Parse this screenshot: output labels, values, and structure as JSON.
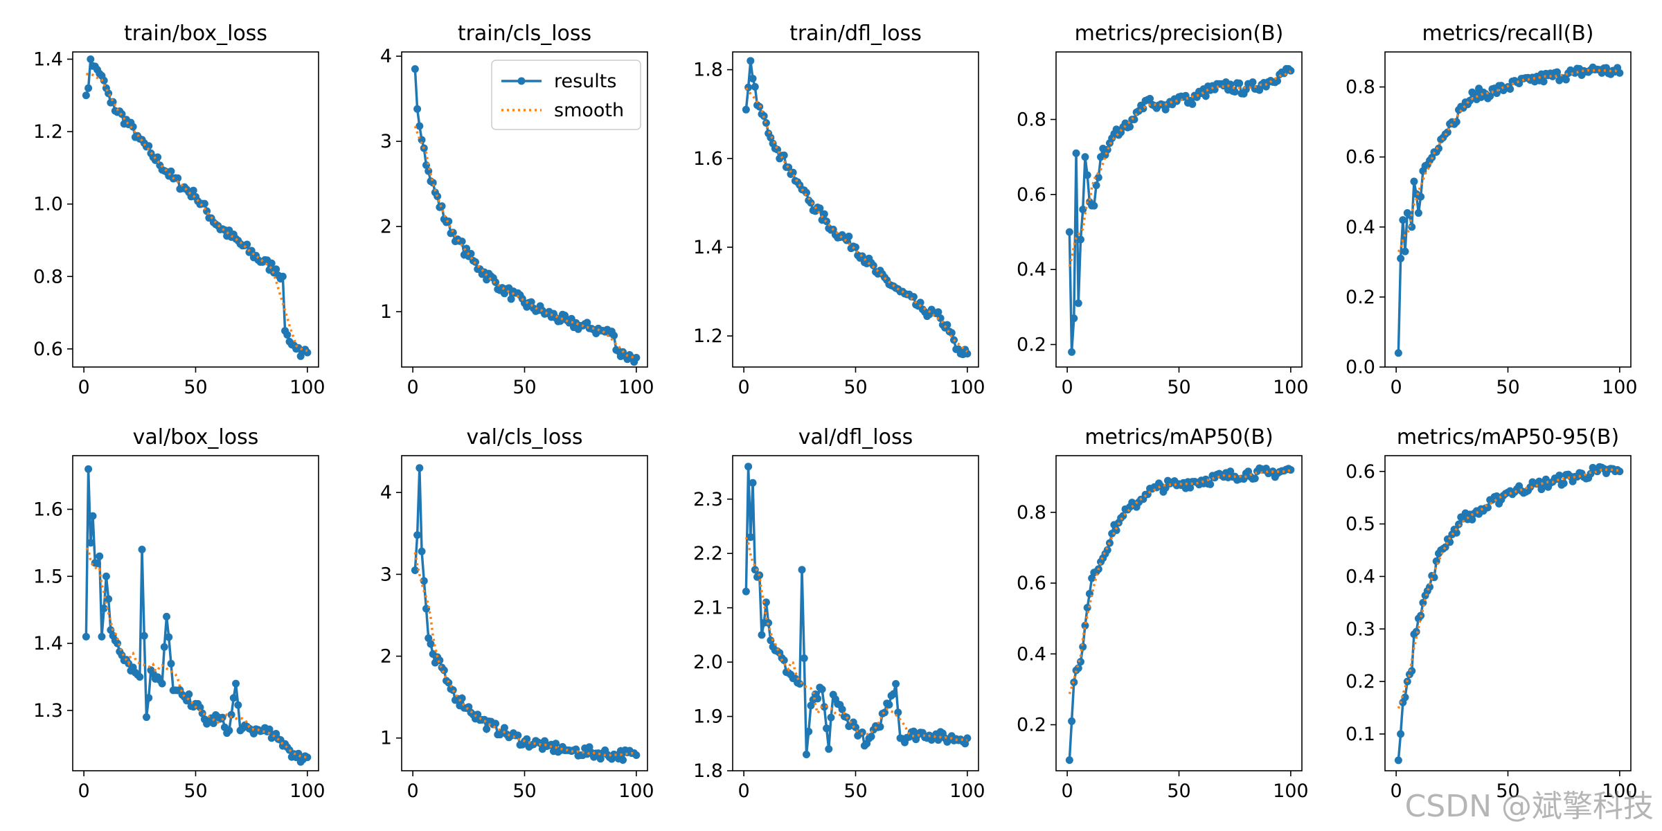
{
  "watermark": "CSDN @斌擎科技",
  "legend": {
    "results": "results",
    "smooth": "smooth"
  },
  "colors": {
    "results": "#1f77b4",
    "smooth": "#ff7f0e",
    "axis": "#000000"
  },
  "chart_data": [
    {
      "type": "line",
      "title": "train/box_loss",
      "xlim": [
        0,
        100
      ],
      "ylim": [
        0.55,
        1.42
      ],
      "xticks": [
        0,
        50,
        100
      ],
      "yticks": [
        0.6,
        0.8,
        1.0,
        1.2,
        1.4
      ],
      "ytick_labels": [
        "0.6",
        "0.8",
        "1.0",
        "1.2",
        "1.4"
      ],
      "anchors": [
        [
          1,
          1.3
        ],
        [
          2,
          1.32
        ],
        [
          3,
          1.4
        ],
        [
          5,
          1.38
        ],
        [
          7,
          1.36
        ],
        [
          10,
          1.32
        ],
        [
          12,
          1.28
        ],
        [
          20,
          1.22
        ],
        [
          25,
          1.18
        ],
        [
          30,
          1.14
        ],
        [
          40,
          1.07
        ],
        [
          50,
          1.02
        ],
        [
          60,
          0.94
        ],
        [
          70,
          0.89
        ],
        [
          80,
          0.84
        ],
        [
          86,
          0.82
        ],
        [
          89,
          0.8
        ],
        [
          90,
          0.65
        ],
        [
          92,
          0.62
        ],
        [
          95,
          0.6
        ],
        [
          97,
          0.58
        ],
        [
          100,
          0.59
        ]
      ],
      "legend": false
    },
    {
      "type": "line",
      "title": "train/cls_loss",
      "xlim": [
        0,
        100
      ],
      "ylim": [
        0.35,
        4.05
      ],
      "xticks": [
        0,
        50,
        100
      ],
      "yticks": [
        1,
        2,
        3,
        4
      ],
      "ytick_labels": [
        "1",
        "2",
        "3",
        "4"
      ],
      "anchors": [
        [
          1,
          3.85
        ],
        [
          2,
          3.38
        ],
        [
          3,
          3.18
        ],
        [
          5,
          2.92
        ],
        [
          7,
          2.65
        ],
        [
          10,
          2.4
        ],
        [
          15,
          2.05
        ],
        [
          20,
          1.85
        ],
        [
          25,
          1.65
        ],
        [
          30,
          1.5
        ],
        [
          40,
          1.28
        ],
        [
          50,
          1.1
        ],
        [
          60,
          0.98
        ],
        [
          70,
          0.87
        ],
        [
          80,
          0.8
        ],
        [
          88,
          0.75
        ],
        [
          90,
          0.72
        ],
        [
          91,
          0.55
        ],
        [
          95,
          0.48
        ],
        [
          100,
          0.46
        ]
      ],
      "legend": true
    },
    {
      "type": "line",
      "title": "train/dfl_loss",
      "xlim": [
        0,
        100
      ],
      "ylim": [
        1.13,
        1.84
      ],
      "xticks": [
        0,
        50,
        100
      ],
      "yticks": [
        1.2,
        1.4,
        1.6,
        1.8
      ],
      "ytick_labels": [
        "1.2",
        "1.4",
        "1.6",
        "1.8"
      ],
      "anchors": [
        [
          1,
          1.71
        ],
        [
          2,
          1.76
        ],
        [
          3,
          1.82
        ],
        [
          4,
          1.78
        ],
        [
          6,
          1.72
        ],
        [
          8,
          1.7
        ],
        [
          10,
          1.68
        ],
        [
          15,
          1.62
        ],
        [
          20,
          1.58
        ],
        [
          25,
          1.54
        ],
        [
          30,
          1.5
        ],
        [
          40,
          1.44
        ],
        [
          50,
          1.4
        ],
        [
          60,
          1.34
        ],
        [
          70,
          1.3
        ],
        [
          80,
          1.26
        ],
        [
          88,
          1.24
        ],
        [
          92,
          1.21
        ],
        [
          95,
          1.17
        ],
        [
          97,
          1.16
        ],
        [
          100,
          1.16
        ]
      ],
      "legend": false
    },
    {
      "type": "line",
      "title": "metrics/precision(B)",
      "xlim": [
        0,
        100
      ],
      "ylim": [
        0.14,
        0.98
      ],
      "xticks": [
        0,
        50,
        100
      ],
      "yticks": [
        0.2,
        0.4,
        0.6,
        0.8
      ],
      "ytick_labels": [
        "0.2",
        "0.4",
        "0.6",
        "0.8"
      ],
      "anchors": [
        [
          1,
          0.5
        ],
        [
          2,
          0.18
        ],
        [
          3,
          0.27
        ],
        [
          4,
          0.71
        ],
        [
          5,
          0.31
        ],
        [
          6,
          0.48
        ],
        [
          7,
          0.56
        ],
        [
          8,
          0.7
        ],
        [
          10,
          0.58
        ],
        [
          12,
          0.57
        ],
        [
          15,
          0.7
        ],
        [
          20,
          0.75
        ],
        [
          25,
          0.78
        ],
        [
          30,
          0.8
        ],
        [
          35,
          0.85
        ],
        [
          40,
          0.83
        ],
        [
          45,
          0.84
        ],
        [
          50,
          0.86
        ],
        [
          55,
          0.85
        ],
        [
          60,
          0.87
        ],
        [
          70,
          0.89
        ],
        [
          80,
          0.88
        ],
        [
          90,
          0.9
        ],
        [
          95,
          0.92
        ],
        [
          100,
          0.93
        ]
      ],
      "legend": false
    },
    {
      "type": "line",
      "title": "metrics/recall(B)",
      "xlim": [
        0,
        100
      ],
      "ylim": [
        0,
        0.9
      ],
      "xticks": [
        0,
        50,
        100
      ],
      "yticks": [
        0.0,
        0.2,
        0.4,
        0.6,
        0.8
      ],
      "ytick_labels": [
        "0.0",
        "0.2",
        "0.4",
        "0.6",
        "0.8"
      ],
      "anchors": [
        [
          1,
          0.04
        ],
        [
          2,
          0.31
        ],
        [
          3,
          0.42
        ],
        [
          4,
          0.33
        ],
        [
          5,
          0.44
        ],
        [
          7,
          0.4
        ],
        [
          8,
          0.53
        ],
        [
          10,
          0.44
        ],
        [
          12,
          0.56
        ],
        [
          15,
          0.59
        ],
        [
          20,
          0.65
        ],
        [
          25,
          0.7
        ],
        [
          30,
          0.74
        ],
        [
          35,
          0.78
        ],
        [
          40,
          0.78
        ],
        [
          50,
          0.8
        ],
        [
          60,
          0.82
        ],
        [
          70,
          0.83
        ],
        [
          80,
          0.84
        ],
        [
          90,
          0.85
        ],
        [
          100,
          0.84
        ]
      ],
      "legend": false
    },
    {
      "type": "line",
      "title": "val/box_loss",
      "xlim": [
        0,
        100
      ],
      "ylim": [
        1.21,
        1.68
      ],
      "xticks": [
        0,
        50,
        100
      ],
      "yticks": [
        1.3,
        1.4,
        1.5,
        1.6
      ],
      "ytick_labels": [
        "1.3",
        "1.4",
        "1.5",
        "1.6"
      ],
      "anchors": [
        [
          1,
          1.41
        ],
        [
          2,
          1.66
        ],
        [
          3,
          1.55
        ],
        [
          4,
          1.59
        ],
        [
          5,
          1.52
        ],
        [
          7,
          1.53
        ],
        [
          8,
          1.41
        ],
        [
          10,
          1.5
        ],
        [
          12,
          1.42
        ],
        [
          15,
          1.4
        ],
        [
          20,
          1.37
        ],
        [
          25,
          1.35
        ],
        [
          26,
          1.54
        ],
        [
          28,
          1.29
        ],
        [
          30,
          1.36
        ],
        [
          35,
          1.34
        ],
        [
          37,
          1.44
        ],
        [
          40,
          1.33
        ],
        [
          45,
          1.32
        ],
        [
          50,
          1.31
        ],
        [
          55,
          1.28
        ],
        [
          60,
          1.29
        ],
        [
          65,
          1.27
        ],
        [
          68,
          1.34
        ],
        [
          70,
          1.27
        ],
        [
          80,
          1.27
        ],
        [
          90,
          1.25
        ],
        [
          95,
          1.23
        ],
        [
          100,
          1.23
        ]
      ],
      "legend": false
    },
    {
      "type": "line",
      "title": "val/cls_loss",
      "xlim": [
        0,
        100
      ],
      "ylim": [
        0.6,
        4.45
      ],
      "xticks": [
        0,
        50,
        100
      ],
      "yticks": [
        1,
        2,
        3,
        4
      ],
      "ytick_labels": [
        "1",
        "2",
        "3",
        "4"
      ],
      "anchors": [
        [
          1,
          3.05
        ],
        [
          2,
          3.48
        ],
        [
          3,
          4.3
        ],
        [
          4,
          3.28
        ],
        [
          5,
          2.92
        ],
        [
          6,
          2.58
        ],
        [
          7,
          2.22
        ],
        [
          8,
          2.15
        ],
        [
          10,
          1.92
        ],
        [
          12,
          1.95
        ],
        [
          15,
          1.7
        ],
        [
          20,
          1.48
        ],
        [
          25,
          1.38
        ],
        [
          30,
          1.22
        ],
        [
          40,
          1.07
        ],
        [
          50,
          0.96
        ],
        [
          60,
          0.9
        ],
        [
          70,
          0.85
        ],
        [
          80,
          0.82
        ],
        [
          90,
          0.8
        ],
        [
          100,
          0.79
        ]
      ],
      "legend": false
    },
    {
      "type": "line",
      "title": "val/dfl_loss",
      "xlim": [
        0,
        100
      ],
      "ylim": [
        1.8,
        2.38
      ],
      "xticks": [
        0,
        50,
        100
      ],
      "yticks": [
        1.8,
        1.9,
        2.0,
        2.1,
        2.2,
        2.3
      ],
      "ytick_labels": [
        "1.8",
        "1.9",
        "2.0",
        "2.1",
        "2.2",
        "2.3"
      ],
      "anchors": [
        [
          1,
          2.13
        ],
        [
          2,
          2.36
        ],
        [
          3,
          2.23
        ],
        [
          4,
          2.33
        ],
        [
          5,
          2.17
        ],
        [
          7,
          2.16
        ],
        [
          8,
          2.05
        ],
        [
          10,
          2.11
        ],
        [
          12,
          2.04
        ],
        [
          15,
          2.02
        ],
        [
          20,
          1.98
        ],
        [
          25,
          1.96
        ],
        [
          26,
          2.17
        ],
        [
          28,
          1.83
        ],
        [
          30,
          1.92
        ],
        [
          35,
          1.95
        ],
        [
          38,
          1.84
        ],
        [
          40,
          1.94
        ],
        [
          45,
          1.9
        ],
        [
          50,
          1.88
        ],
        [
          55,
          1.85
        ],
        [
          60,
          1.88
        ],
        [
          68,
          1.96
        ],
        [
          70,
          1.86
        ],
        [
          80,
          1.87
        ],
        [
          90,
          1.86
        ],
        [
          100,
          1.86
        ]
      ],
      "legend": false
    },
    {
      "type": "line",
      "title": "metrics/mAP50(B)",
      "xlim": [
        0,
        100
      ],
      "ylim": [
        0.07,
        0.96
      ],
      "xticks": [
        0,
        50,
        100
      ],
      "yticks": [
        0.2,
        0.4,
        0.6,
        0.8
      ],
      "ytick_labels": [
        "0.2",
        "0.4",
        "0.6",
        "0.8"
      ],
      "anchors": [
        [
          1,
          0.1
        ],
        [
          2,
          0.21
        ],
        [
          3,
          0.32
        ],
        [
          5,
          0.36
        ],
        [
          7,
          0.42
        ],
        [
          8,
          0.48
        ],
        [
          10,
          0.57
        ],
        [
          12,
          0.63
        ],
        [
          15,
          0.66
        ],
        [
          20,
          0.74
        ],
        [
          25,
          0.79
        ],
        [
          30,
          0.82
        ],
        [
          35,
          0.85
        ],
        [
          40,
          0.87
        ],
        [
          50,
          0.88
        ],
        [
          60,
          0.89
        ],
        [
          70,
          0.9
        ],
        [
          80,
          0.91
        ],
        [
          90,
          0.91
        ],
        [
          100,
          0.92
        ]
      ],
      "legend": false
    },
    {
      "type": "line",
      "title": "metrics/mAP50-95(B)",
      "xlim": [
        0,
        100
      ],
      "ylim": [
        0.03,
        0.63
      ],
      "xticks": [
        0,
        50,
        100
      ],
      "yticks": [
        0.1,
        0.2,
        0.3,
        0.4,
        0.5,
        0.6
      ],
      "ytick_labels": [
        "0.1",
        "0.2",
        "0.3",
        "0.4",
        "0.5",
        "0.6"
      ],
      "anchors": [
        [
          1,
          0.05
        ],
        [
          2,
          0.1
        ],
        [
          3,
          0.16
        ],
        [
          5,
          0.2
        ],
        [
          7,
          0.22
        ],
        [
          8,
          0.29
        ],
        [
          10,
          0.32
        ],
        [
          12,
          0.35
        ],
        [
          15,
          0.38
        ],
        [
          20,
          0.45
        ],
        [
          25,
          0.48
        ],
        [
          30,
          0.51
        ],
        [
          35,
          0.52
        ],
        [
          40,
          0.53
        ],
        [
          50,
          0.56
        ],
        [
          60,
          0.57
        ],
        [
          70,
          0.58
        ],
        [
          80,
          0.59
        ],
        [
          90,
          0.6
        ],
        [
          100,
          0.6
        ]
      ],
      "legend": false
    }
  ]
}
